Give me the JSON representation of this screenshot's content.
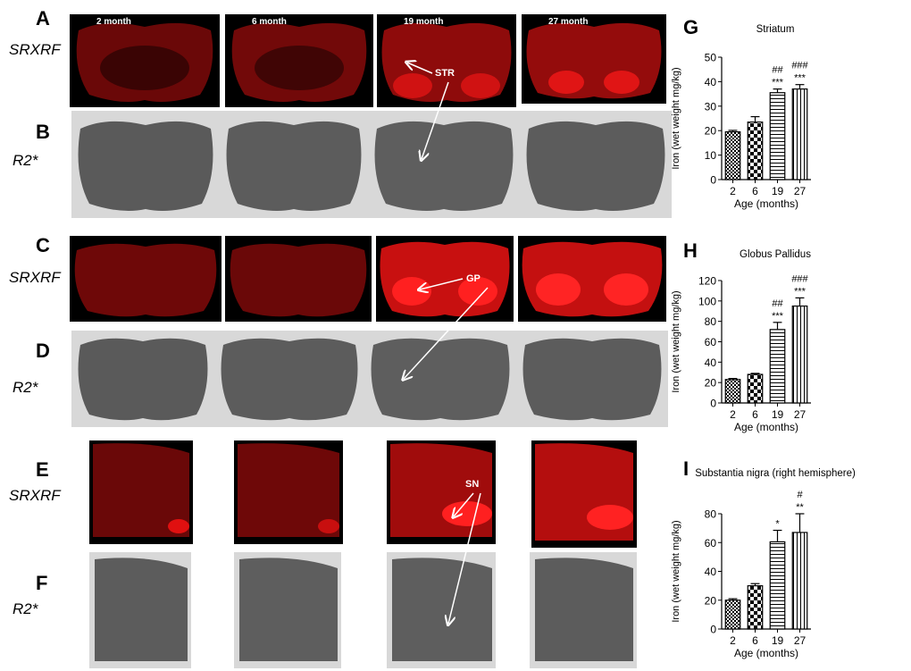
{
  "panels": {
    "A": "A",
    "B": "B",
    "C": "C",
    "D": "D",
    "E": "E",
    "F": "F",
    "G": "G",
    "H": "H",
    "I": "I"
  },
  "row_labels": {
    "srxrf": "SRXRF",
    "r2": "R2*"
  },
  "ages": [
    "2 month",
    "6 month",
    "19 month",
    "27 month"
  ],
  "annotations": {
    "str": "STR",
    "gp": "GP",
    "sn": "SN"
  },
  "colors": {
    "xrf_bg": "#000000",
    "xrf_fg": "#e01010",
    "mri_bg": "#555555",
    "bar_fill": "#ffffff",
    "bar_stroke": "#000000"
  },
  "chart_data": [
    {
      "type": "bar",
      "title": "Striatum",
      "xlabel": "Age (months)",
      "ylabel": "Iron (wet weight mg/kg)",
      "categories": [
        "2",
        "6",
        "19",
        "27"
      ],
      "values": [
        19.5,
        23.5,
        35.5,
        37
      ],
      "errors": [
        0.6,
        2.2,
        1.5,
        1.8
      ],
      "ylim": [
        0,
        50
      ],
      "yticks": [
        0,
        10,
        20,
        30,
        40,
        50
      ],
      "patterns": [
        "checker-fine",
        "checker",
        "horizontal",
        "vertical"
      ],
      "significance": [
        [
          "",
          ""
        ],
        [
          "",
          ""
        ],
        [
          "##",
          "***"
        ],
        [
          "###",
          "***"
        ]
      ]
    },
    {
      "type": "bar",
      "title": "Globus Pallidus",
      "xlabel": "Age (months)",
      "ylabel": "Iron (wet weight mg/kg)",
      "categories": [
        "2",
        "6",
        "19",
        "27"
      ],
      "values": [
        23,
        28,
        72,
        95
      ],
      "errors": [
        1,
        1,
        7,
        8
      ],
      "ylim": [
        0,
        120
      ],
      "yticks": [
        0,
        20,
        40,
        60,
        80,
        100,
        120
      ],
      "patterns": [
        "checker-fine",
        "checker",
        "horizontal",
        "vertical"
      ],
      "significance": [
        [
          "",
          ""
        ],
        [
          "",
          ""
        ],
        [
          "##",
          "***"
        ],
        [
          "###",
          "***"
        ]
      ]
    },
    {
      "type": "bar",
      "title": "Substantia nigra (right hemisphere)",
      "xlabel": "Age (months)",
      "ylabel": "Iron (wet weight mg/kg)",
      "categories": [
        "2",
        "6",
        "19",
        "27"
      ],
      "values": [
        20,
        30,
        60.5,
        67
      ],
      "errors": [
        1,
        1.5,
        8,
        13
      ],
      "ylim": [
        0,
        80
      ],
      "yticks": [
        0,
        20,
        40,
        60,
        80
      ],
      "patterns": [
        "checker-fine",
        "checker",
        "horizontal",
        "vertical"
      ],
      "significance": [
        [
          "",
          ""
        ],
        [
          "",
          ""
        ],
        [
          "",
          "*"
        ],
        [
          "#",
          "**"
        ]
      ]
    }
  ]
}
